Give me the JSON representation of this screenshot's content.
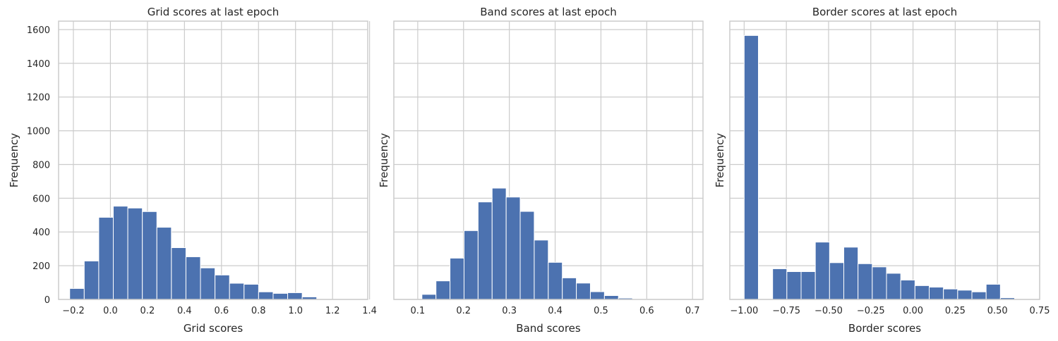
{
  "chart_data": [
    {
      "type": "bar",
      "title": "Grid scores at last epoch",
      "xlabel": "Grid scores",
      "ylabel": "Frequency",
      "xlim": [
        -0.28,
        1.39
      ],
      "ylim": [
        0,
        1650
      ],
      "xticks": [
        -0.2,
        0.0,
        0.2,
        0.4,
        0.6,
        0.8,
        1.0,
        1.2,
        1.4
      ],
      "xtick_labels": [
        "−0.2",
        "0.0",
        "0.2",
        "0.4",
        "0.6",
        "0.8",
        "1.0",
        "1.2",
        "1.4"
      ],
      "yticks": [
        0,
        200,
        400,
        600,
        800,
        1000,
        1200,
        1400,
        1600
      ],
      "ytick_labels": [
        "0",
        "200",
        "400",
        "600",
        "800",
        "1000",
        "1200",
        "1400",
        "1600"
      ],
      "show_yticklabels": true,
      "grid": true,
      "bins": {
        "start": -0.22,
        "width": 0.0785,
        "counts": [
          65,
          228,
          487,
          553,
          542,
          521,
          428,
          307,
          253,
          187,
          145,
          96,
          90,
          45,
          36,
          40,
          15,
          0,
          0,
          0
        ]
      }
    },
    {
      "type": "bar",
      "title": "Band scores at last epoch",
      "xlabel": "Band scores",
      "ylabel": "Frequency",
      "xlim": [
        0.0478,
        0.7228
      ],
      "ylim": [
        0,
        1650
      ],
      "xticks": [
        0.1,
        0.2,
        0.3,
        0.4,
        0.5,
        0.6,
        0.7
      ],
      "xtick_labels": [
        "0.1",
        "0.2",
        "0.3",
        "0.4",
        "0.5",
        "0.6",
        "0.7"
      ],
      "yticks": [
        0,
        200,
        400,
        600,
        800,
        1000,
        1200,
        1400,
        1600
      ],
      "ytick_labels": [
        "0",
        "200",
        "400",
        "600",
        "800",
        "1000",
        "1200",
        "1400",
        "1600"
      ],
      "show_yticklabels": false,
      "grid": true,
      "bins": {
        "start": 0.0785,
        "width": 0.03065,
        "counts": [
          0,
          30,
          110,
          245,
          408,
          578,
          660,
          607,
          522,
          352,
          220,
          128,
          97,
          46,
          23,
          8,
          2,
          1,
          0,
          0
        ]
      }
    },
    {
      "type": "bar",
      "title": "Border scores at last epoch",
      "xlabel": "Border scores",
      "ylabel": "Frequency",
      "xlim": [
        -1.085,
        0.75
      ],
      "ylim": [
        0,
        1650
      ],
      "xticks": [
        -1.0,
        -0.75,
        -0.5,
        -0.25,
        0.0,
        0.25,
        0.5,
        0.75
      ],
      "xtick_labels": [
        "−1.00",
        "−0.75",
        "−0.50",
        "−0.25",
        "0.00",
        "0.25",
        "0.50",
        "0.75"
      ],
      "yticks": [
        0,
        200,
        400,
        600,
        800,
        1000,
        1200,
        1400,
        1600
      ],
      "ytick_labels": [
        "0",
        "200",
        "400",
        "600",
        "800",
        "1000",
        "1200",
        "1400",
        "1600"
      ],
      "show_yticklabels": false,
      "grid": true,
      "bins": {
        "start": -1.0,
        "width": 0.0843,
        "counts": [
          1565,
          0,
          182,
          165,
          165,
          340,
          218,
          310,
          212,
          193,
          155,
          115,
          82,
          73,
          62,
          55,
          45,
          90,
          10,
          0
        ]
      }
    }
  ]
}
